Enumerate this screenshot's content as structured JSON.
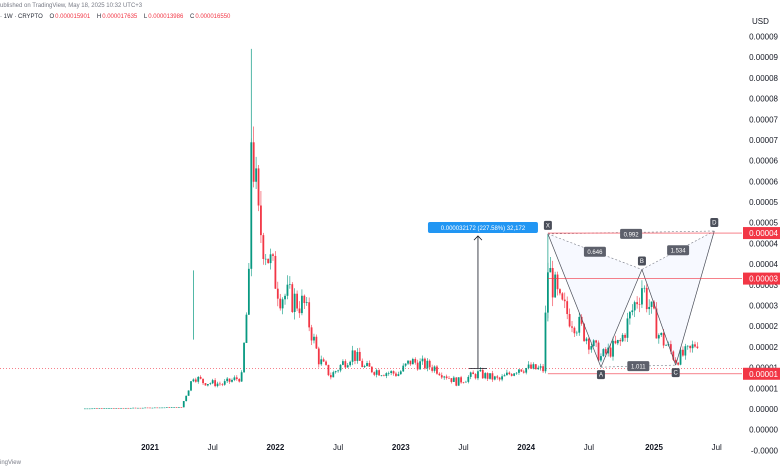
{
  "header": {
    "published": "ublished on TradingView, May 18, 2025 10:32 UTC+3",
    "symbol": "· 1W · CRYPTO",
    "open_label": "O",
    "open": "0.000015901",
    "high_label": "H",
    "high": "0.000017635",
    "low_label": "L",
    "low": "0.000013986",
    "close_label": "C",
    "close": "0.000016550"
  },
  "footer": {
    "watermark": "ingView"
  },
  "currency": "USD",
  "colors": {
    "up": "#089981",
    "down": "#f23645",
    "accent": "#2962ff",
    "pattern_line": "#787b86"
  },
  "measure_label": "0.000032172 (227.58%) 32,172",
  "price_labels": [
    "0.00004",
    "0.00003",
    "0.00001"
  ],
  "pattern": {
    "points": [
      {
        "label": "X",
        "date": "2024-03-04",
        "price": 4.23e-05
      },
      {
        "label": "A",
        "date": "2024-08-05",
        "price": 1.01e-05
      },
      {
        "label": "B",
        "date": "2024-12-02",
        "price": 3.37e-05
      },
      {
        "label": "C",
        "date": "2025-03-10",
        "price": 1.06e-05
      },
      {
        "label": "D",
        "date": "2025-06-30",
        "price": 4.3e-05
      }
    ],
    "ratios": [
      "0.646",
      "1.534",
      "0.992",
      "1.011"
    ]
  },
  "chart_data": {
    "type": "candlestick",
    "x_axis_ticks": [
      "2021",
      "Jul",
      "2022",
      "Jul",
      "2023",
      "Jul",
      "2024",
      "Jul",
      "2025",
      "Jul"
    ],
    "y_axis_ticks": [
      "0.00009",
      "0.00009",
      "0.00008",
      "0.00008",
      "0.00007",
      "0.00007",
      "0.00006",
      "0.00006",
      "0.00005",
      "0.00005",
      "0.00004",
      "0.00004",
      "0.00003",
      "0.00003",
      "0.00002",
      "0.00002",
      "0.00001",
      "0.00001",
      "0.00000",
      "0.00000",
      "-0.0000"
    ],
    "ylim": [
      -7.5e-06,
      9.35e-05
    ],
    "series": [
      {
        "date": "2020-06-29",
        "value": 1e-07
      },
      {
        "date": "2021-04-05",
        "value": 4e-07
      },
      {
        "date": "2021-05-10",
        "value": 8e-06
      },
      {
        "date": "2021-06-07",
        "value": 6.5e-06
      },
      {
        "date": "2021-08-02",
        "value": 6e-06
      },
      {
        "date": "2021-09-27",
        "value": 7.8e-06
      },
      {
        "date": "2021-10-18",
        "value": 3e-05
      },
      {
        "date": "2021-10-25",
        "value": 6.65e-05
      },
      {
        "date": "2021-11-15",
        "value": 4.5e-05
      },
      {
        "date": "2021-12-20",
        "value": 3.5e-05
      },
      {
        "date": "2022-01-17",
        "value": 2.8e-05
      },
      {
        "date": "2022-03-28",
        "value": 2.5e-05
      },
      {
        "date": "2022-05-09",
        "value": 1.2e-05
      },
      {
        "date": "2022-06-13",
        "value": 8e-06
      },
      {
        "date": "2022-08-15",
        "value": 1.35e-05
      },
      {
        "date": "2022-09-19",
        "value": 1e-05
      },
      {
        "date": "2022-11-07",
        "value": 9e-06
      },
      {
        "date": "2022-12-26",
        "value": 8.5e-06
      },
      {
        "date": "2023-01-30",
        "value": 1.15e-05
      },
      {
        "date": "2023-04-10",
        "value": 1e-05
      },
      {
        "date": "2023-06-12",
        "value": 6.5e-06
      },
      {
        "date": "2023-08-14",
        "value": 8.5e-06
      },
      {
        "date": "2023-10-16",
        "value": 7e-06
      },
      {
        "date": "2023-12-11",
        "value": 1e-05
      },
      {
        "date": "2024-02-19",
        "value": 9.5e-06
      },
      {
        "date": "2024-03-04",
        "value": 3.4e-05
      },
      {
        "date": "2024-04-08",
        "value": 2.5e-05
      },
      {
        "date": "2024-06-03",
        "value": 2e-05
      },
      {
        "date": "2024-08-05",
        "value": 1.25e-05
      },
      {
        "date": "2024-09-30",
        "value": 1.6e-05
      },
      {
        "date": "2024-12-02",
        "value": 3e-05
      },
      {
        "date": "2025-01-20",
        "value": 1.8e-05
      },
      {
        "date": "2025-03-10",
        "value": 1.2e-05
      },
      {
        "date": "2025-04-21",
        "value": 1.4e-05
      },
      {
        "date": "2025-05-12",
        "value": 1.66e-05
      }
    ],
    "spikes": [
      {
        "date": "2021-05-10",
        "high": 3.35e-05
      },
      {
        "date": "2021-10-25",
        "high": 8.7e-05
      },
      {
        "date": "2024-03-04",
        "high": 4.23e-05
      }
    ]
  }
}
